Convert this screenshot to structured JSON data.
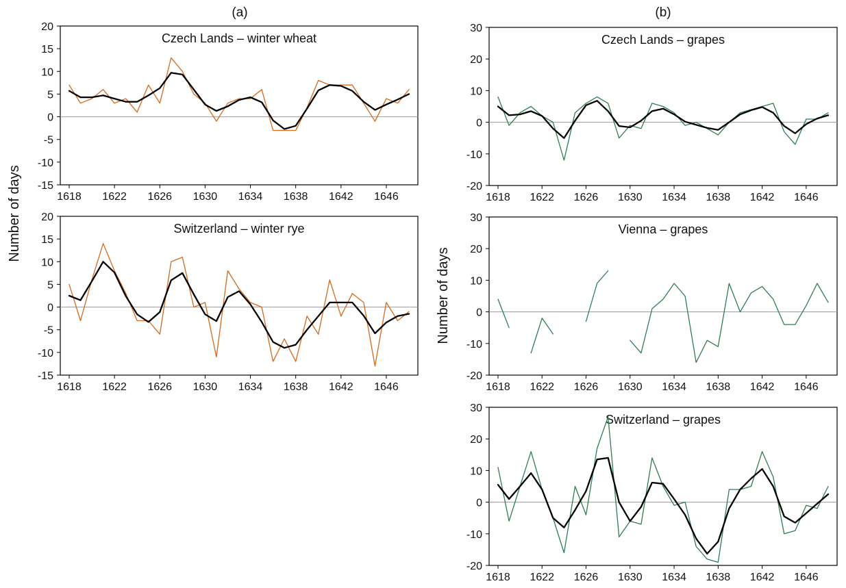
{
  "figure": {
    "panel_labels": [
      "(a)",
      "(b)"
    ],
    "ylabel": "Number of days"
  },
  "chart_data": [
    {
      "type": "line",
      "title": "Czech Lands – winter wheat",
      "ylim": [
        -15,
        20
      ],
      "yticks": [
        -15,
        -10,
        -5,
        0,
        5,
        10,
        15,
        20
      ],
      "xlim": [
        1618,
        1648
      ],
      "xticks": [
        1618,
        1622,
        1626,
        1630,
        1634,
        1638,
        1642,
        1646
      ],
      "zero_line": true,
      "series": [
        {
          "role": "raw",
          "color": "#d2691e",
          "x": [
            1618,
            1619,
            1620,
            1621,
            1622,
            1623,
            1624,
            1625,
            1626,
            1627,
            1628,
            1629,
            1630,
            1631,
            1632,
            1633,
            1634,
            1635,
            1636,
            1637,
            1638,
            1639,
            1640,
            1641,
            1642,
            1643,
            1644,
            1645,
            1646,
            1647,
            1648
          ],
          "values": [
            7,
            3,
            4,
            6,
            3,
            4,
            1,
            7,
            3,
            13,
            10,
            5,
            3,
            -1,
            3,
            4,
            4,
            6,
            -3,
            -3,
            -3,
            2,
            8,
            7,
            7,
            7,
            3,
            -1,
            4,
            3,
            6
          ]
        },
        {
          "role": "smoothed",
          "color": "#000000",
          "x": [
            1618,
            1619,
            1620,
            1621,
            1622,
            1623,
            1624,
            1625,
            1626,
            1627,
            1628,
            1629,
            1630,
            1631,
            1632,
            1633,
            1634,
            1635,
            1636,
            1637,
            1638,
            1639,
            1640,
            1641,
            1642,
            1643,
            1644,
            1645,
            1646,
            1647,
            1648
          ],
          "values": [
            5.7,
            4.3,
            4.3,
            4.7,
            4.0,
            3.3,
            3.3,
            4.7,
            6.3,
            9.7,
            9.3,
            6.0,
            2.7,
            1.3,
            2.3,
            3.7,
            4.3,
            3.2,
            -0.8,
            -2.7,
            -2.0,
            1.8,
            5.8,
            7.0,
            6.8,
            5.7,
            3.3,
            1.5,
            2.7,
            3.8,
            5.0
          ]
        }
      ]
    },
    {
      "type": "line",
      "title": "Switzerland – winter rye",
      "ylim": [
        -15,
        20
      ],
      "yticks": [
        -15,
        -10,
        -5,
        0,
        5,
        10,
        15,
        20
      ],
      "xlim": [
        1618,
        1648
      ],
      "xticks": [
        1618,
        1622,
        1626,
        1630,
        1634,
        1638,
        1642,
        1646
      ],
      "zero_line": true,
      "series": [
        {
          "role": "raw",
          "color": "#d2691e",
          "x": [
            1618,
            1619,
            1620,
            1621,
            1622,
            1623,
            1624,
            1625,
            1626,
            1627,
            1628,
            1629,
            1630,
            1631,
            1632,
            1633,
            1634,
            1635,
            1636,
            1637,
            1638,
            1639,
            1640,
            1641,
            1642,
            1643,
            1644,
            1645,
            1646,
            1647,
            1648
          ],
          "values": [
            5,
            -3,
            6,
            14,
            8,
            3,
            -3,
            -3,
            -6,
            10,
            11,
            0,
            1,
            -11,
            8,
            4,
            1,
            0,
            -12,
            -7,
            -12,
            -2,
            -6,
            6,
            -2,
            3,
            1,
            -13,
            1,
            -3,
            -1
          ]
        },
        {
          "role": "smoothed",
          "color": "#000000",
          "x": [
            1618,
            1619,
            1620,
            1621,
            1622,
            1623,
            1624,
            1625,
            1626,
            1627,
            1628,
            1629,
            1630,
            1631,
            1632,
            1633,
            1634,
            1635,
            1636,
            1637,
            1638,
            1639,
            1640,
            1641,
            1642,
            1643,
            1644,
            1645,
            1646,
            1647,
            1648
          ],
          "values": [
            2.5,
            1.5,
            5.7,
            10.0,
            7.6,
            2.4,
            -1.6,
            -3.3,
            -1.1,
            5.9,
            7.5,
            2.8,
            -1.6,
            -3.1,
            2.2,
            3.5,
            0.6,
            -3.3,
            -7.7,
            -9.0,
            -8.3,
            -5.0,
            -2.0,
            1.0,
            1.0,
            1.0,
            -1.9,
            -5.8,
            -3.4,
            -2.0,
            -1.5
          ]
        }
      ]
    },
    {
      "type": "line",
      "title": "Czech Lands – grapes",
      "ylim": [
        -20,
        30
      ],
      "yticks": [
        -20,
        -10,
        0,
        10,
        20,
        30
      ],
      "xlim": [
        1618,
        1648
      ],
      "xticks": [
        1618,
        1622,
        1626,
        1630,
        1634,
        1638,
        1642,
        1646
      ],
      "zero_line": true,
      "series": [
        {
          "role": "raw",
          "color": "#2e7d4f",
          "x": [
            1618,
            1619,
            1620,
            1621,
            1622,
            1623,
            1624,
            1625,
            1626,
            1627,
            1628,
            1629,
            1630,
            1631,
            1632,
            1633,
            1634,
            1635,
            1636,
            1637,
            1638,
            1639,
            1640,
            1641,
            1642,
            1643,
            1644,
            1645,
            1646,
            1647,
            1648
          ],
          "values": [
            8,
            -1,
            3,
            5,
            2,
            0,
            -12,
            3,
            6,
            8,
            6,
            -5,
            -1,
            -2,
            6,
            5,
            3,
            -1,
            0,
            -2,
            -4,
            0,
            3,
            4,
            5,
            6,
            -3,
            -7,
            1,
            1,
            3
          ]
        },
        {
          "role": "smoothed",
          "color": "#000000",
          "x": [
            1618,
            1619,
            1620,
            1621,
            1622,
            1623,
            1624,
            1625,
            1626,
            1627,
            1628,
            1629,
            1630,
            1631,
            1632,
            1633,
            1634,
            1635,
            1636,
            1637,
            1638,
            1639,
            1640,
            1641,
            1642,
            1643,
            1644,
            1645,
            1646,
            1647,
            1648
          ],
          "values": [
            5,
            2.2,
            2.5,
            3.5,
            2,
            -2,
            -5,
            0.5,
            5.4,
            6.8,
            3.5,
            -1.2,
            -1.6,
            0.5,
            3.5,
            4.3,
            2.5,
            0.2,
            -0.8,
            -1.8,
            -2.4,
            0,
            2.5,
            3.8,
            4.8,
            3,
            -1.2,
            -3.5,
            -0.6,
            1.2,
            2.2
          ]
        }
      ]
    },
    {
      "type": "line",
      "title": "Vienna – grapes",
      "ylim": [
        -20,
        30
      ],
      "yticks": [
        -20,
        -10,
        0,
        10,
        20,
        30
      ],
      "xlim": [
        1618,
        1648
      ],
      "xticks": [
        1618,
        1622,
        1626,
        1630,
        1634,
        1638,
        1642,
        1646
      ],
      "zero_line": true,
      "series": [
        {
          "role": "raw",
          "color": "#2e7d4f",
          "x": [
            1618,
            1619,
            1620,
            1621,
            1622,
            1623,
            1624,
            1625,
            1626,
            1627,
            1628,
            1629,
            1630,
            1631,
            1632,
            1633,
            1634,
            1635,
            1636,
            1637,
            1638,
            1639,
            1640,
            1641,
            1642,
            1643,
            1644,
            1645,
            1646,
            1647,
            1648
          ],
          "values": [
            4,
            -5,
            null,
            -13,
            -2,
            -7,
            null,
            null,
            -3,
            9,
            13,
            null,
            -9,
            -13,
            1,
            4,
            9,
            5,
            -16,
            -9,
            -11,
            9,
            0,
            6,
            8,
            4,
            -4,
            -4,
            2,
            9,
            3
          ]
        }
      ]
    },
    {
      "type": "line",
      "title": "Switzerland – grapes",
      "ylim": [
        -20,
        30
      ],
      "yticks": [
        -20,
        -10,
        0,
        10,
        20,
        30
      ],
      "xlim": [
        1618,
        1648
      ],
      "xticks": [
        1618,
        1622,
        1626,
        1630,
        1634,
        1638,
        1642,
        1646
      ],
      "zero_line": true,
      "series": [
        {
          "role": "raw",
          "color": "#2e7d4f",
          "x": [
            1618,
            1619,
            1620,
            1621,
            1622,
            1623,
            1624,
            1625,
            1626,
            1627,
            1628,
            1629,
            1630,
            1631,
            1632,
            1633,
            1634,
            1635,
            1636,
            1637,
            1638,
            1639,
            1640,
            1641,
            1642,
            1643,
            1644,
            1645,
            1646,
            1647,
            1648
          ],
          "values": [
            11,
            -6,
            5,
            16,
            4,
            -5,
            -16,
            5,
            -4,
            17,
            27,
            -11,
            -6,
            -7,
            14,
            5,
            -1,
            0,
            -14,
            -18,
            -19,
            4,
            4,
            5,
            16,
            8,
            -10,
            -9,
            -1,
            -2,
            5
          ]
        },
        {
          "role": "smoothed",
          "color": "#000000",
          "x": [
            1618,
            1619,
            1620,
            1621,
            1622,
            1623,
            1624,
            1625,
            1626,
            1627,
            1628,
            1629,
            1630,
            1631,
            1632,
            1633,
            1634,
            1635,
            1636,
            1637,
            1638,
            1639,
            1640,
            1641,
            1642,
            1643,
            1644,
            1645,
            1646,
            1647,
            1648
          ],
          "values": [
            5.5,
            1,
            5,
            9.2,
            4,
            -5,
            -8,
            -2.5,
            3.5,
            13.5,
            14,
            0,
            -6,
            -1.5,
            6.2,
            5.8,
            1,
            -4,
            -11.5,
            -16.3,
            -12.5,
            -2,
            4,
            7.5,
            10.5,
            5,
            -4.5,
            -6.5,
            -3.5,
            -0.5,
            2.5
          ]
        }
      ]
    }
  ]
}
